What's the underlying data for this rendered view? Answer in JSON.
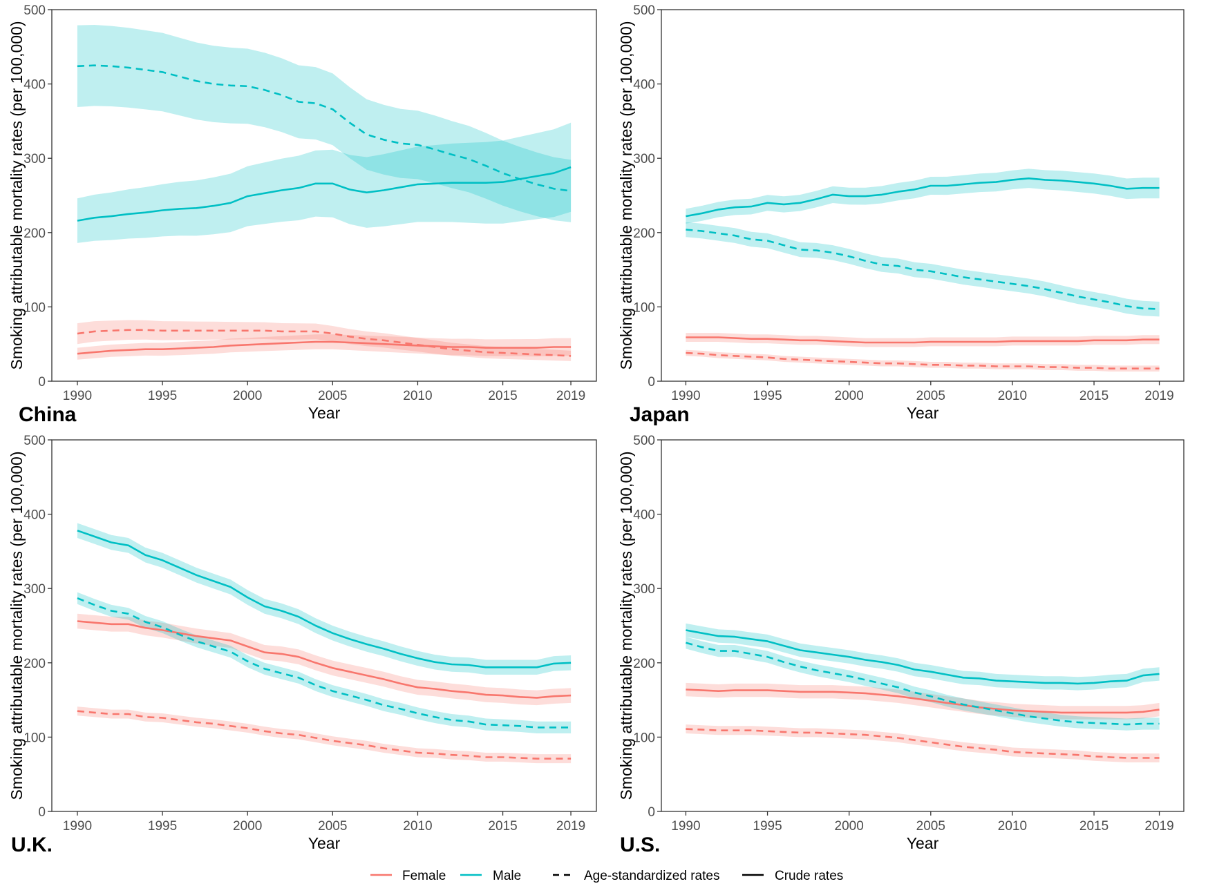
{
  "figure": {
    "legend": {
      "female_label": "Female",
      "male_label": "Male",
      "age_std_label": "Age-standardized rates",
      "crude_label": "Crude rates"
    },
    "colors": {
      "female": "#F8766D",
      "male": "#00BFC4"
    }
  },
  "chart_data": [
    {
      "type": "line",
      "panel_label": "China",
      "xlabel": "Year",
      "ylabel": "Smoking attributable mortality rates (per 100,000)",
      "xlim": [
        1988.5,
        2020.5
      ],
      "ylim": [
        0,
        500
      ],
      "x_ticks": [
        1990,
        1995,
        2000,
        2005,
        2010,
        2015,
        2019
      ],
      "y_ticks": [
        0,
        100,
        200,
        300,
        400,
        500
      ],
      "grid": false,
      "x": [
        1990,
        1991,
        1992,
        1993,
        1994,
        1995,
        1996,
        1997,
        1998,
        1999,
        2000,
        2001,
        2002,
        2003,
        2004,
        2005,
        2006,
        2007,
        2008,
        2009,
        2010,
        2011,
        2012,
        2013,
        2014,
        2015,
        2016,
        2017,
        2018,
        2019
      ],
      "series": [
        {
          "sex": "Female",
          "rate": "Crude",
          "values": [
            37,
            39,
            41,
            42,
            43,
            43,
            44,
            45,
            46,
            48,
            49,
            50,
            51,
            52,
            53,
            53,
            52,
            51,
            50,
            49,
            48,
            47,
            46,
            46,
            45,
            45,
            45,
            45,
            46,
            46
          ],
          "band": [
            8,
            12
          ]
        },
        {
          "sex": "Female",
          "rate": "Age-standardized",
          "values": [
            64,
            67,
            68,
            69,
            69,
            68,
            68,
            68,
            68,
            68,
            68,
            68,
            67,
            67,
            67,
            64,
            60,
            57,
            55,
            52,
            49,
            46,
            43,
            41,
            39,
            38,
            37,
            36,
            35,
            34
          ],
          "band": [
            14,
            7
          ]
        },
        {
          "sex": "Male",
          "rate": "Crude",
          "values": [
            216,
            220,
            222,
            225,
            227,
            230,
            232,
            233,
            236,
            240,
            249,
            253,
            257,
            260,
            266,
            266,
            258,
            254,
            257,
            261,
            265,
            266,
            267,
            267,
            267,
            268,
            272,
            276,
            280,
            288
          ],
          "band": [
            30,
            60
          ]
        },
        {
          "sex": "Male",
          "rate": "Age-standardized",
          "values": [
            424,
            425,
            424,
            422,
            419,
            416,
            410,
            404,
            400,
            398,
            397,
            392,
            385,
            376,
            374,
            366,
            348,
            332,
            325,
            320,
            318,
            312,
            305,
            299,
            290,
            280,
            272,
            265,
            259,
            256
          ],
          "band": [
            55,
            42
          ]
        }
      ]
    },
    {
      "type": "line",
      "panel_label": "Japan",
      "xlabel": "Year",
      "ylabel": "Smoking attributable mortality rates (per 100,000)",
      "xlim": [
        1988.5,
        2020.5
      ],
      "ylim": [
        0,
        500
      ],
      "x_ticks": [
        1990,
        1995,
        2000,
        2005,
        2010,
        2015,
        2019
      ],
      "y_ticks": [
        0,
        100,
        200,
        300,
        400,
        500
      ],
      "grid": false,
      "x": [
        1990,
        1991,
        1992,
        1993,
        1994,
        1995,
        1996,
        1997,
        1998,
        1999,
        2000,
        2001,
        2002,
        2003,
        2004,
        2005,
        2006,
        2007,
        2008,
        2009,
        2010,
        2011,
        2012,
        2013,
        2014,
        2015,
        2016,
        2017,
        2018,
        2019
      ],
      "series": [
        {
          "sex": "Female",
          "rate": "Crude",
          "values": [
            59,
            59,
            59,
            58,
            57,
            57,
            56,
            55,
            55,
            54,
            53,
            52,
            52,
            52,
            52,
            53,
            53,
            53,
            53,
            53,
            54,
            54,
            54,
            54,
            54,
            55,
            55,
            55,
            56,
            56
          ],
          "band": [
            6,
            6
          ]
        },
        {
          "sex": "Female",
          "rate": "Age-standardized",
          "values": [
            38,
            37,
            35,
            34,
            33,
            32,
            30,
            29,
            28,
            27,
            26,
            25,
            24,
            24,
            23,
            22,
            22,
            21,
            21,
            20,
            20,
            20,
            19,
            19,
            18,
            18,
            17,
            17,
            17,
            17
          ],
          "band": [
            4,
            4
          ]
        },
        {
          "sex": "Male",
          "rate": "Crude",
          "values": [
            222,
            226,
            231,
            234,
            235,
            240,
            238,
            240,
            245,
            251,
            249,
            249,
            251,
            255,
            258,
            263,
            263,
            265,
            267,
            268,
            271,
            273,
            271,
            270,
            268,
            266,
            263,
            259,
            260,
            260
          ],
          "band": [
            10,
            14
          ]
        },
        {
          "sex": "Male",
          "rate": "Age-standardized",
          "values": [
            204,
            202,
            199,
            196,
            191,
            189,
            183,
            177,
            176,
            173,
            168,
            162,
            157,
            155,
            150,
            148,
            144,
            140,
            137,
            134,
            131,
            128,
            124,
            119,
            114,
            110,
            106,
            101,
            98,
            97
          ],
          "band": [
            10,
            10
          ]
        }
      ]
    },
    {
      "type": "line",
      "panel_label": "U.K.",
      "xlabel": "Year",
      "ylabel": "Smoking attributable mortality rates (per 100,000)",
      "xlim": [
        1988.5,
        2020.5
      ],
      "ylim": [
        0,
        500
      ],
      "x_ticks": [
        1990,
        1995,
        2000,
        2005,
        2010,
        2015,
        2019
      ],
      "y_ticks": [
        0,
        100,
        200,
        300,
        400,
        500
      ],
      "grid": false,
      "x": [
        1990,
        1991,
        1992,
        1993,
        1994,
        1995,
        1996,
        1997,
        1998,
        1999,
        2000,
        2001,
        2002,
        2003,
        2004,
        2005,
        2006,
        2007,
        2008,
        2009,
        2010,
        2011,
        2012,
        2013,
        2014,
        2015,
        2016,
        2017,
        2018,
        2019
      ],
      "series": [
        {
          "sex": "Female",
          "rate": "Crude",
          "values": [
            256,
            254,
            252,
            252,
            247,
            244,
            240,
            236,
            233,
            230,
            222,
            214,
            212,
            208,
            200,
            193,
            188,
            183,
            178,
            172,
            167,
            165,
            162,
            160,
            157,
            156,
            154,
            153,
            155,
            156
          ],
          "band": [
            10,
            10
          ]
        },
        {
          "sex": "Female",
          "rate": "Age-standardized",
          "values": [
            135,
            133,
            131,
            131,
            127,
            126,
            123,
            120,
            118,
            115,
            112,
            108,
            105,
            103,
            99,
            95,
            92,
            89,
            85,
            82,
            79,
            78,
            76,
            75,
            73,
            73,
            72,
            71,
            71,
            71
          ],
          "band": [
            6,
            6
          ]
        },
        {
          "sex": "Male",
          "rate": "Crude",
          "values": [
            378,
            370,
            362,
            358,
            345,
            338,
            328,
            318,
            310,
            302,
            288,
            276,
            270,
            262,
            250,
            240,
            232,
            225,
            219,
            212,
            206,
            201,
            198,
            197,
            194,
            194,
            194,
            194,
            199,
            200
          ],
          "band": [
            10,
            10
          ]
        },
        {
          "sex": "Male",
          "rate": "Age-standardized",
          "values": [
            287,
            278,
            270,
            266,
            255,
            248,
            238,
            229,
            222,
            215,
            202,
            192,
            186,
            180,
            170,
            162,
            156,
            150,
            143,
            138,
            132,
            127,
            123,
            121,
            117,
            116,
            115,
            113,
            113,
            113
          ],
          "band": [
            8,
            8
          ]
        }
      ]
    },
    {
      "type": "line",
      "panel_label": "U.S.",
      "xlabel": "Year",
      "ylabel": "Smoking attributable mortality rates (per 100,000)",
      "xlim": [
        1988.5,
        2020.5
      ],
      "ylim": [
        0,
        500
      ],
      "x_ticks": [
        1990,
        1995,
        2000,
        2005,
        2010,
        2015,
        2019
      ],
      "y_ticks": [
        0,
        100,
        200,
        300,
        400,
        500
      ],
      "grid": false,
      "x": [
        1990,
        1991,
        1992,
        1993,
        1994,
        1995,
        1996,
        1997,
        1998,
        1999,
        2000,
        2001,
        2002,
        2003,
        2004,
        2005,
        2006,
        2007,
        2008,
        2009,
        2010,
        2011,
        2012,
        2013,
        2014,
        2015,
        2016,
        2017,
        2018,
        2019
      ],
      "series": [
        {
          "sex": "Female",
          "rate": "Crude",
          "values": [
            164,
            163,
            162,
            163,
            163,
            163,
            162,
            161,
            161,
            161,
            160,
            159,
            157,
            155,
            152,
            149,
            146,
            143,
            140,
            138,
            136,
            135,
            134,
            133,
            133,
            133,
            133,
            133,
            134,
            137
          ],
          "band": [
            9,
            9
          ]
        },
        {
          "sex": "Female",
          "rate": "Age-standardized",
          "values": [
            111,
            110,
            109,
            109,
            109,
            108,
            107,
            106,
            106,
            105,
            104,
            103,
            101,
            99,
            96,
            93,
            90,
            87,
            85,
            83,
            80,
            79,
            78,
            77,
            76,
            74,
            73,
            72,
            72,
            72
          ],
          "band": [
            6,
            6
          ]
        },
        {
          "sex": "Male",
          "rate": "Crude",
          "values": [
            244,
            240,
            236,
            235,
            232,
            229,
            223,
            217,
            214,
            211,
            208,
            204,
            201,
            197,
            191,
            188,
            184,
            180,
            179,
            176,
            175,
            174,
            173,
            173,
            172,
            173,
            175,
            176,
            183,
            185
          ],
          "band": [
            9,
            9
          ]
        },
        {
          "sex": "Male",
          "rate": "Age-standardized",
          "values": [
            227,
            221,
            216,
            216,
            212,
            208,
            201,
            195,
            190,
            186,
            182,
            177,
            172,
            167,
            160,
            155,
            149,
            144,
            140,
            136,
            132,
            128,
            125,
            122,
            120,
            119,
            118,
            117,
            118,
            118
          ],
          "band": [
            8,
            8
          ]
        }
      ]
    }
  ]
}
